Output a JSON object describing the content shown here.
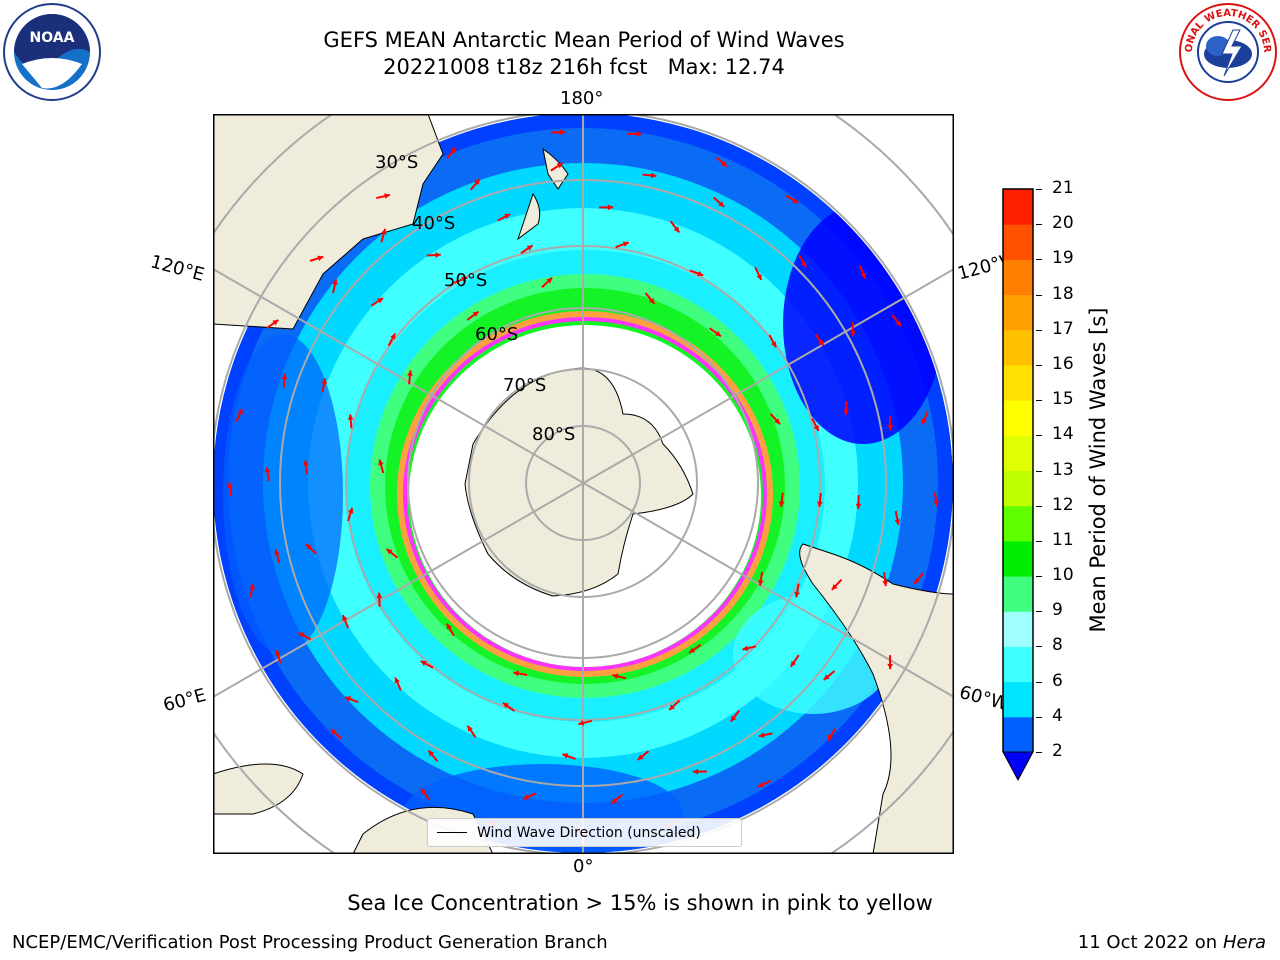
{
  "title": {
    "line1": "GEFS MEAN Antarctic Mean Period of Wind Waves",
    "line2": "20221008 t18z 216h fcst   Max: 12.74"
  },
  "logos": {
    "left": "noaa-logo",
    "right": "nws-logo"
  },
  "map": {
    "projection": "south-polar-stereographic",
    "longitude_labels": {
      "top": "180°",
      "bottom": "0°",
      "upper_left": "120°E",
      "upper_right": "120°W",
      "lower_left": "60°E",
      "lower_right": "60°W"
    },
    "latitude_labels": [
      "30°S",
      "40°S",
      "50°S",
      "60°S",
      "70°S",
      "80°S"
    ],
    "arrow_color": "#ff0000",
    "land_color": "#efecdc",
    "ice_colors": [
      "#ff33ff",
      "#ffa040",
      "#ffe000"
    ]
  },
  "legend": {
    "label": "Wind Wave Direction (unscaled)"
  },
  "colorbar": {
    "label": "Mean Period of Wind Waves [s]",
    "ticks": [
      "2",
      "4",
      "6",
      "8",
      "9",
      "10",
      "11",
      "12",
      "13",
      "14",
      "15",
      "16",
      "17",
      "18",
      "19",
      "20",
      "21"
    ],
    "colors": [
      "#0060ff",
      "#00e5ff",
      "#40ffff",
      "#a0ffff",
      "#40ff80",
      "#00ee00",
      "#60ff00",
      "#c0ff00",
      "#e0ff00",
      "#ffff00",
      "#ffe000",
      "#ffc000",
      "#ffa000",
      "#ff8000",
      "#ff5000",
      "#ff2000"
    ],
    "extend_color": "#0000ff"
  },
  "subtitle": "Sea Ice Concentration > 15% is shown in pink to yellow",
  "footer": {
    "credit": "NCEP/EMC/Verification Post Processing Product Generation Branch",
    "date": "11 Oct 2022 on",
    "machine": "Hera"
  }
}
